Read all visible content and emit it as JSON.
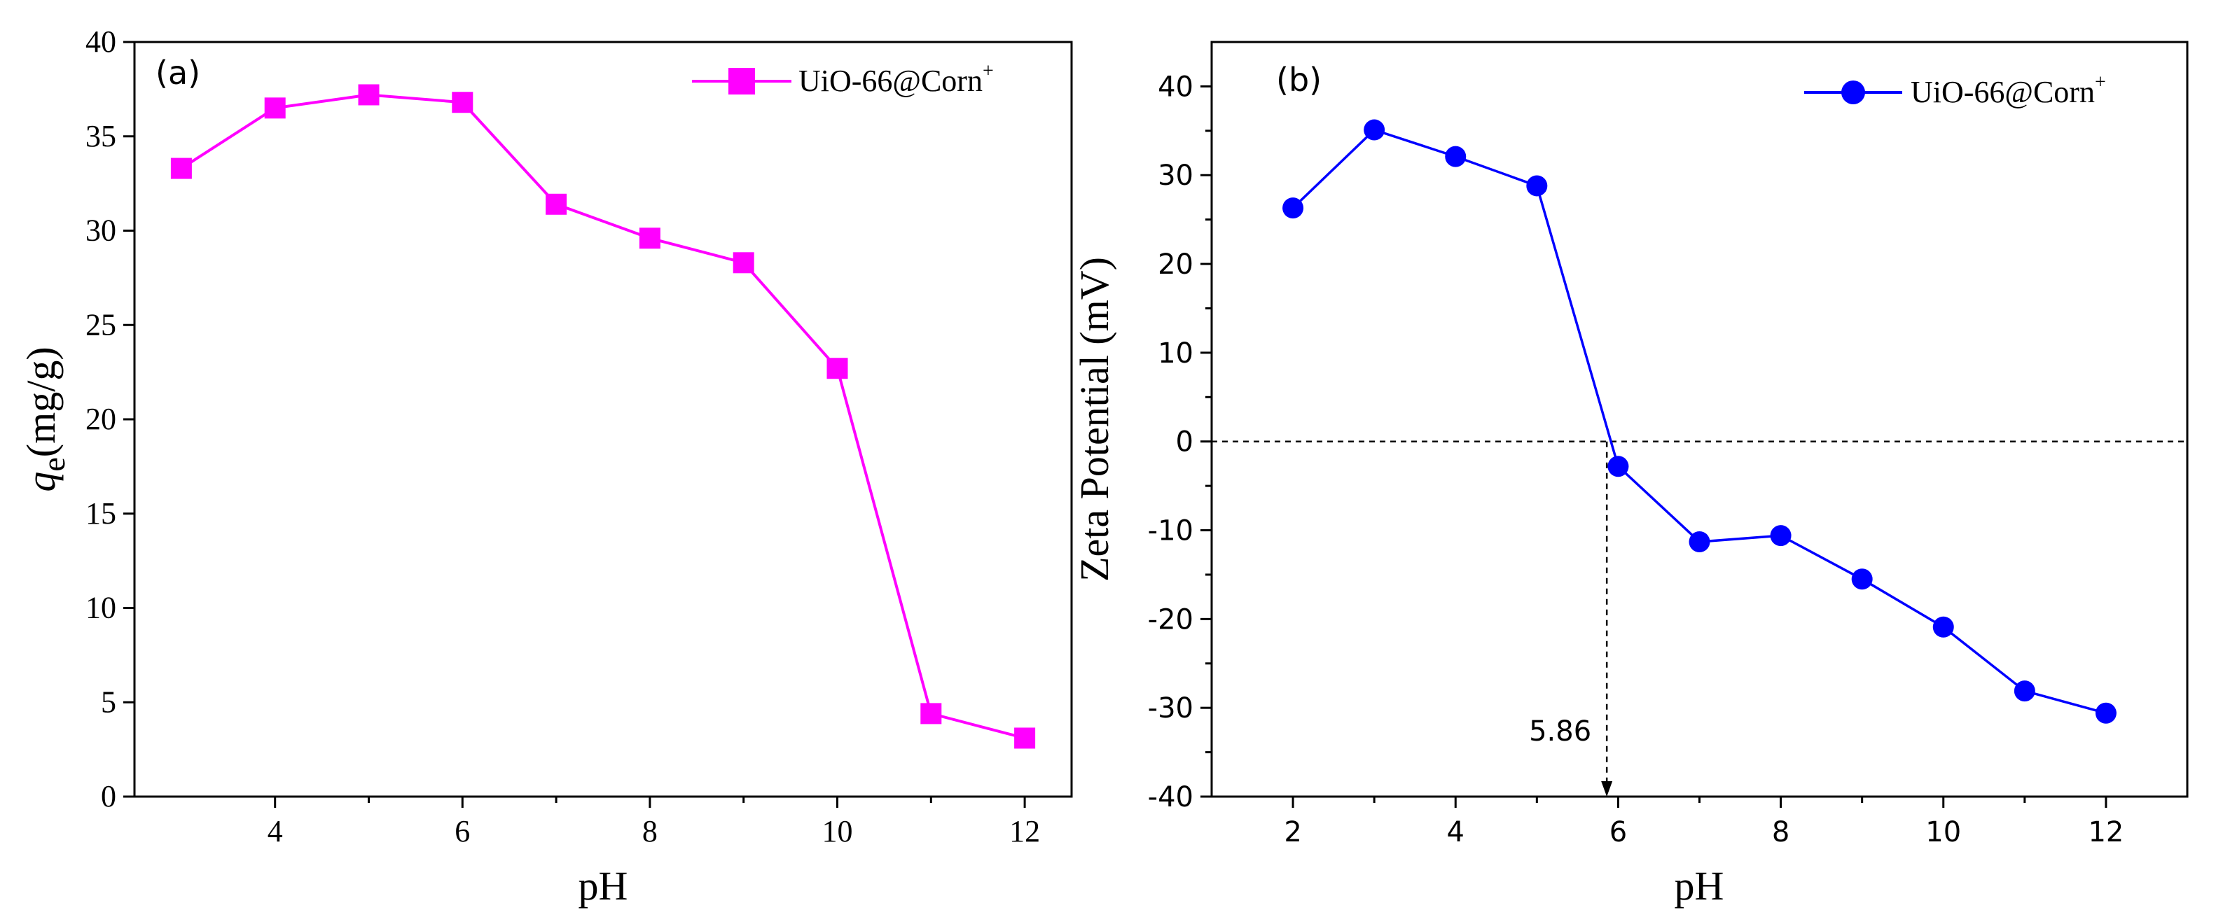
{
  "chart_data": [
    {
      "type": "line",
      "panel_label": "(a)",
      "x": [
        3,
        4,
        5,
        6,
        7,
        8,
        9,
        10,
        11,
        12
      ],
      "series": [
        {
          "name": "UiO-66@Corn",
          "name_sup": "+",
          "values": [
            33.3,
            36.5,
            37.2,
            36.8,
            31.4,
            29.6,
            28.3,
            22.7,
            4.4,
            3.1
          ],
          "color": "#ff00ff",
          "marker": "square"
        }
      ],
      "xlabel": "pH",
      "ylabel": "q",
      "ylabel_sub": "e",
      "ylabel_suffix": "(mg/g)",
      "xlim": [
        2.5,
        12.5
      ],
      "ylim": [
        0,
        40
      ],
      "xticks": [
        "4",
        "6",
        "8",
        "10",
        "12"
      ],
      "yticks": [
        "0",
        "5",
        "10",
        "15",
        "20",
        "25",
        "30",
        "35",
        "40"
      ],
      "legend_position": "top-right"
    },
    {
      "type": "line",
      "panel_label": "(b)",
      "x": [
        2,
        3,
        4,
        5,
        6,
        7,
        8,
        9,
        10,
        11,
        12
      ],
      "series": [
        {
          "name": "UiO-66@Corn",
          "name_sup": "+",
          "values": [
            26.3,
            35.1,
            32.1,
            28.8,
            -2.8,
            -11.3,
            -10.6,
            -15.5,
            -20.9,
            -28.1,
            -30.6
          ],
          "color": "#0000ff",
          "marker": "circle"
        }
      ],
      "xlabel": "pH",
      "ylabel": "Zeta Potential (mV)",
      "xlim": [
        1,
        13
      ],
      "ylim": [
        -40,
        45
      ],
      "xticks": [
        "2",
        "4",
        "6",
        "8",
        "10",
        "12"
      ],
      "yticks": [
        "-40",
        "-30",
        "-20",
        "-10",
        "0",
        "10",
        "20",
        "30",
        "40"
      ],
      "reference_line_y": 0,
      "annotation": {
        "text": "5.86",
        "x": 5.86
      },
      "legend_position": "top-right"
    }
  ]
}
